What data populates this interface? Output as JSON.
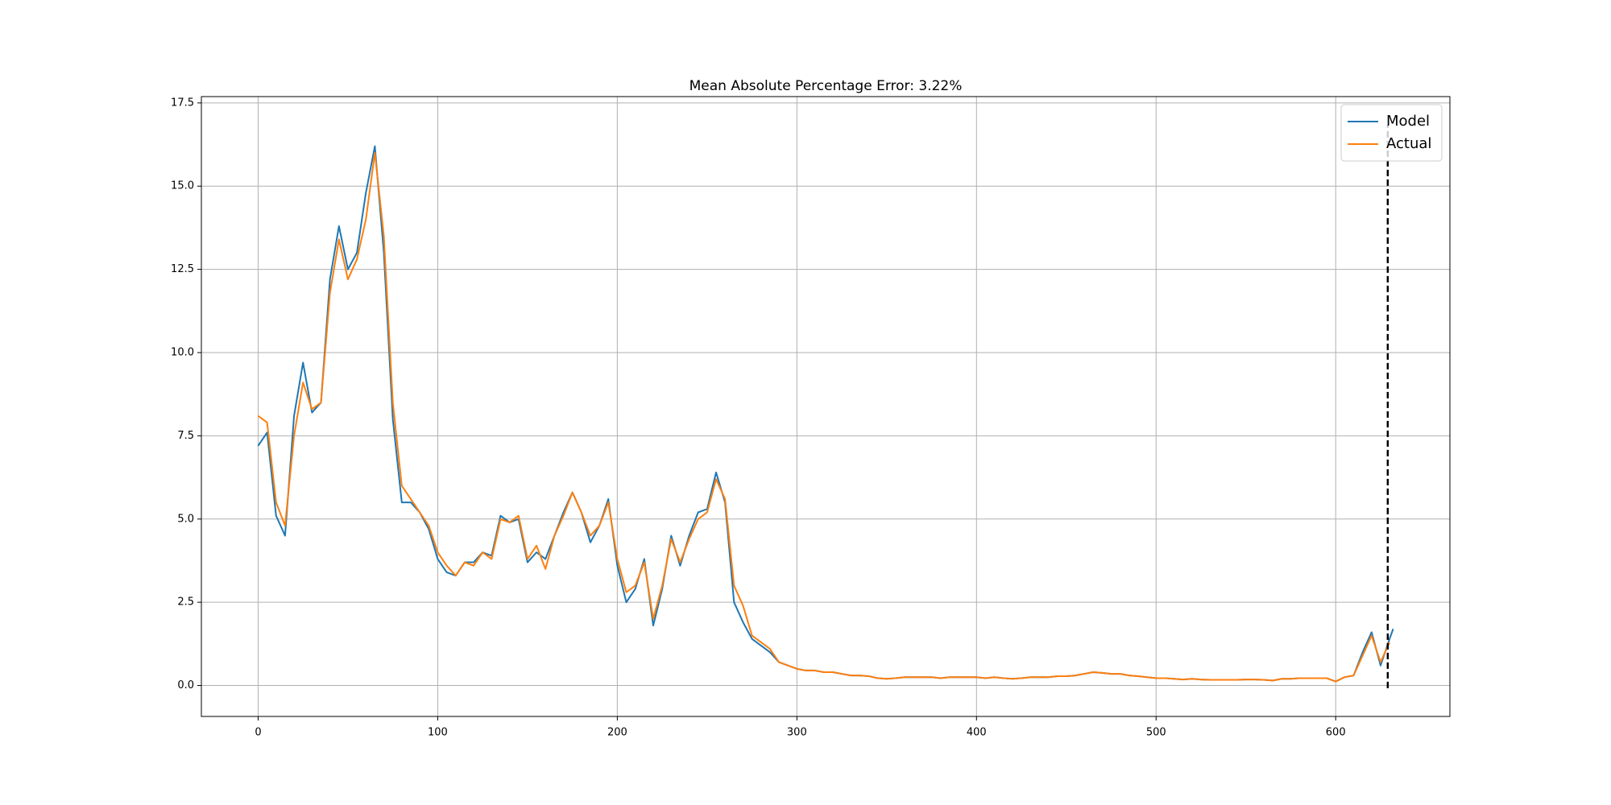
{
  "chart_data": {
    "type": "line",
    "title": "Mean Absolute Percentage Error: 3.22%",
    "x": [
      0,
      5,
      10,
      15,
      20,
      25,
      30,
      35,
      40,
      45,
      50,
      55,
      60,
      65,
      70,
      75,
      80,
      85,
      90,
      95,
      100,
      105,
      110,
      115,
      120,
      125,
      130,
      135,
      140,
      145,
      150,
      155,
      160,
      165,
      170,
      175,
      180,
      185,
      190,
      195,
      200,
      205,
      210,
      215,
      220,
      225,
      230,
      235,
      240,
      245,
      250,
      255,
      260,
      265,
      270,
      275,
      280,
      285,
      290,
      295,
      300,
      305,
      310,
      315,
      320,
      325,
      330,
      335,
      340,
      345,
      350,
      355,
      360,
      365,
      370,
      375,
      380,
      385,
      390,
      395,
      400,
      405,
      410,
      415,
      420,
      425,
      430,
      435,
      440,
      445,
      450,
      455,
      460,
      465,
      470,
      475,
      480,
      485,
      490,
      495,
      500,
      505,
      510,
      515,
      520,
      525,
      530,
      535,
      540,
      545,
      550,
      555,
      560,
      565,
      570,
      575,
      580,
      585,
      590,
      595,
      600,
      605,
      610,
      615,
      620,
      625,
      630,
      632
    ],
    "series": [
      {
        "name": "Model",
        "color": "#1f77b4",
        "values": [
          7.2,
          7.6,
          5.1,
          4.5,
          8.1,
          9.7,
          8.2,
          8.5,
          12.2,
          13.8,
          12.5,
          13.0,
          14.8,
          16.2,
          13.0,
          8.0,
          5.5,
          5.5,
          5.2,
          4.7,
          3.8,
          3.4,
          3.3,
          3.7,
          3.7,
          4.0,
          3.9,
          5.1,
          4.9,
          5.0,
          3.7,
          4.0,
          3.8,
          4.5,
          5.2,
          5.8,
          5.2,
          4.3,
          4.8,
          5.6,
          3.6,
          2.5,
          2.9,
          3.8,
          1.8,
          2.9,
          4.5,
          3.6,
          4.5,
          5.2,
          5.3,
          6.4,
          5.5,
          2.5,
          1.9,
          1.4,
          1.2,
          1.0,
          0.7,
          0.6,
          0.5,
          0.45,
          0.45,
          0.4,
          0.4,
          0.35,
          0.3,
          0.3,
          0.28,
          0.22,
          0.2,
          0.22,
          0.25,
          0.25,
          0.25,
          0.25,
          0.22,
          0.25,
          0.25,
          0.25,
          0.25,
          0.22,
          0.25,
          0.22,
          0.2,
          0.22,
          0.25,
          0.25,
          0.25,
          0.28,
          0.28,
          0.3,
          0.35,
          0.4,
          0.38,
          0.35,
          0.35,
          0.3,
          0.28,
          0.25,
          0.22,
          0.22,
          0.2,
          0.18,
          0.2,
          0.18,
          0.17,
          0.17,
          0.17,
          0.17,
          0.18,
          0.18,
          0.17,
          0.15,
          0.2,
          0.2,
          0.22,
          0.22,
          0.22,
          0.22,
          0.12,
          0.25,
          0.3,
          1.0,
          1.6,
          0.6,
          1.4,
          1.7
        ]
      },
      {
        "name": "Actual",
        "color": "#ff7f0e",
        "values": [
          8.1,
          7.9,
          5.5,
          4.8,
          7.5,
          9.1,
          8.3,
          8.5,
          11.8,
          13.4,
          12.2,
          12.8,
          14.0,
          16.0,
          13.5,
          8.5,
          6.0,
          5.6,
          5.2,
          4.8,
          4.0,
          3.6,
          3.3,
          3.7,
          3.6,
          4.0,
          3.8,
          5.0,
          4.9,
          5.1,
          3.8,
          4.2,
          3.5,
          4.5,
          5.1,
          5.8,
          5.2,
          4.5,
          4.8,
          5.5,
          3.8,
          2.8,
          3.0,
          3.7,
          2.0,
          3.0,
          4.4,
          3.7,
          4.4,
          5.0,
          5.2,
          6.2,
          5.6,
          3.0,
          2.4,
          1.5,
          1.3,
          1.1,
          0.7,
          0.6,
          0.5,
          0.45,
          0.45,
          0.4,
          0.4,
          0.35,
          0.3,
          0.3,
          0.28,
          0.22,
          0.2,
          0.22,
          0.25,
          0.25,
          0.25,
          0.25,
          0.22,
          0.25,
          0.25,
          0.25,
          0.25,
          0.22,
          0.25,
          0.22,
          0.2,
          0.22,
          0.25,
          0.25,
          0.25,
          0.28,
          0.28,
          0.3,
          0.35,
          0.4,
          0.38,
          0.35,
          0.35,
          0.3,
          0.28,
          0.25,
          0.22,
          0.22,
          0.2,
          0.18,
          0.2,
          0.18,
          0.17,
          0.17,
          0.17,
          0.17,
          0.18,
          0.18,
          0.17,
          0.15,
          0.2,
          0.2,
          0.22,
          0.22,
          0.22,
          0.22,
          0.12,
          0.25,
          0.3,
          0.9,
          1.5,
          0.7,
          1.3,
          null
        ]
      }
    ],
    "vline": {
      "x": 629,
      "ymin": -0.08,
      "ymax": 16.85,
      "color": "#000000"
    },
    "xlim": [
      -31.6,
      663.6
    ],
    "xticks": [
      0,
      100,
      200,
      300,
      400,
      500,
      600
    ],
    "ylim": [
      -0.93,
      17.69
    ],
    "yticks": [
      {
        "value": 0,
        "label": "0.0"
      },
      2.5,
      {
        "value": 5,
        "label": "5.0"
      },
      7.5,
      {
        "value": 10,
        "label": "10.0"
      },
      12.5,
      {
        "value": 15,
        "label": "15.0"
      },
      17.5
    ],
    "grid": true,
    "legend": "upper right"
  }
}
